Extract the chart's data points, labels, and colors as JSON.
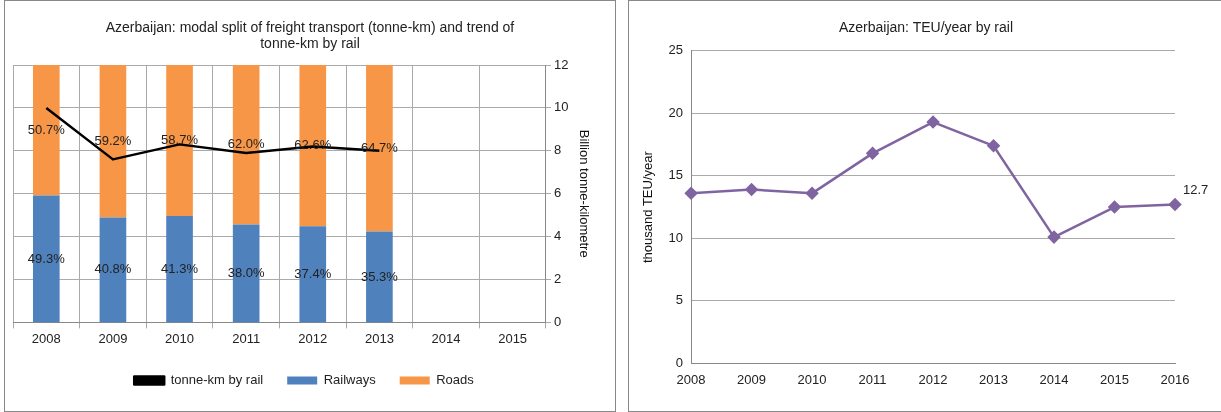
{
  "chart_data": [
    {
      "type": "bar",
      "title": "Azerbaijan: modal split of freight transport (tonne-km) and trend of tonne-km by rail",
      "categories": [
        "2008",
        "2009",
        "2010",
        "2011",
        "2012",
        "2013",
        "2014",
        "2015"
      ],
      "stacked": true,
      "ylim": [
        0,
        100
      ],
      "y2lim": [
        0,
        12
      ],
      "y2ticks": [
        0,
        2,
        4,
        6,
        8,
        10,
        12
      ],
      "y2label": "Billion tonne-kilometre",
      "grid": true,
      "legend": "bottom",
      "series": [
        {
          "name": "Railways",
          "color": "#4f81bd",
          "values": [
            49.3,
            40.8,
            41.3,
            38.0,
            37.4,
            35.3,
            null,
            null
          ],
          "value_labels": [
            "49.3%",
            "40.8%",
            "41.3%",
            "38.0%",
            "37.4%",
            "35.3%",
            null,
            null
          ]
        },
        {
          "name": "Roads",
          "color": "#f79646",
          "values": [
            50.7,
            59.2,
            58.7,
            62.0,
            62.6,
            64.7,
            null,
            null
          ],
          "value_labels": [
            "50.7%",
            "59.2%",
            "58.7%",
            "62.0%",
            "62.6%",
            "64.7%",
            null,
            null
          ]
        },
        {
          "name": "tonne-km by rail",
          "type": "line",
          "axis": "y2",
          "color": "#000000",
          "values": [
            10.0,
            7.6,
            8.3,
            7.9,
            8.2,
            8.0,
            null,
            null
          ]
        }
      ]
    },
    {
      "type": "line",
      "title": "Azerbaijan: TEU/year by rail",
      "categories": [
        "2008",
        "2009",
        "2010",
        "2011",
        "2012",
        "2013",
        "2014",
        "2015",
        "2016"
      ],
      "ylim": [
        0,
        25
      ],
      "yticks": [
        0,
        5,
        10,
        15,
        20,
        25
      ],
      "ylabel": "thousand TEU/year",
      "grid": "y",
      "marker": "diamond",
      "series": [
        {
          "color": "#8064a2",
          "values": [
            13.6,
            13.9,
            13.6,
            16.8,
            19.3,
            17.4,
            10.1,
            12.5,
            12.7
          ],
          "value_labels": [
            null,
            null,
            null,
            null,
            null,
            null,
            null,
            null,
            "12.7"
          ]
        }
      ]
    }
  ]
}
